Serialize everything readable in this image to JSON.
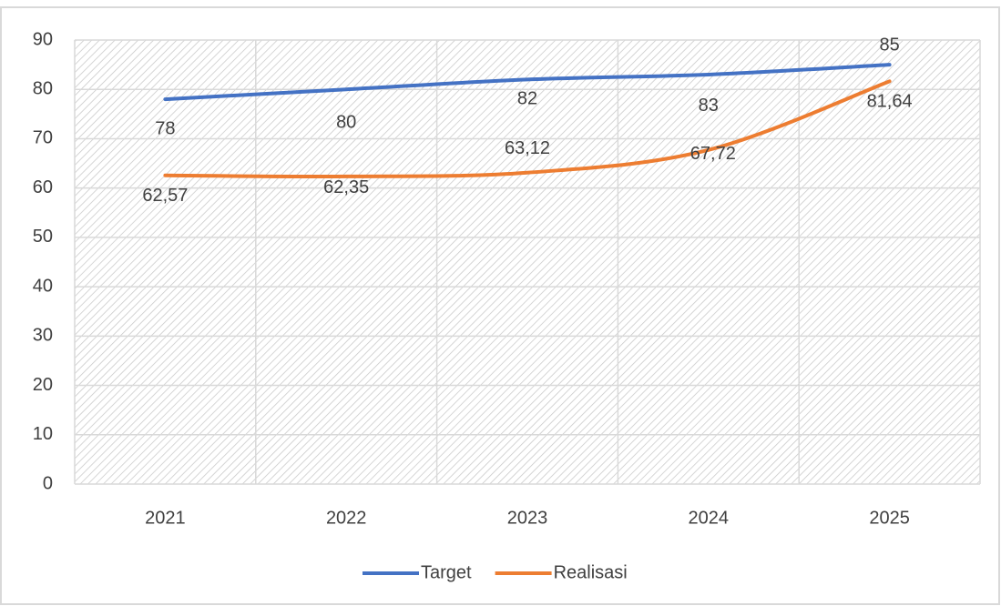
{
  "chart_data": {
    "type": "line",
    "categories": [
      "2021",
      "2022",
      "2023",
      "2024",
      "2025"
    ],
    "series": [
      {
        "name": "Target",
        "color": "#4472c4",
        "values": [
          78,
          80,
          82,
          83,
          85
        ]
      },
      {
        "name": "Realisasi",
        "color": "#ed7d31",
        "values": [
          62.57,
          62.35,
          63.12,
          67.72,
          81.64
        ],
        "value_labels": [
          "62,57",
          "62,35",
          "63,12",
          "67,72",
          "81,64"
        ]
      }
    ],
    "ylim": [
      0,
      90
    ],
    "yticks": [
      0,
      10,
      20,
      30,
      40,
      50,
      60,
      70,
      80,
      90
    ],
    "grid": true,
    "legend": "bottom"
  }
}
